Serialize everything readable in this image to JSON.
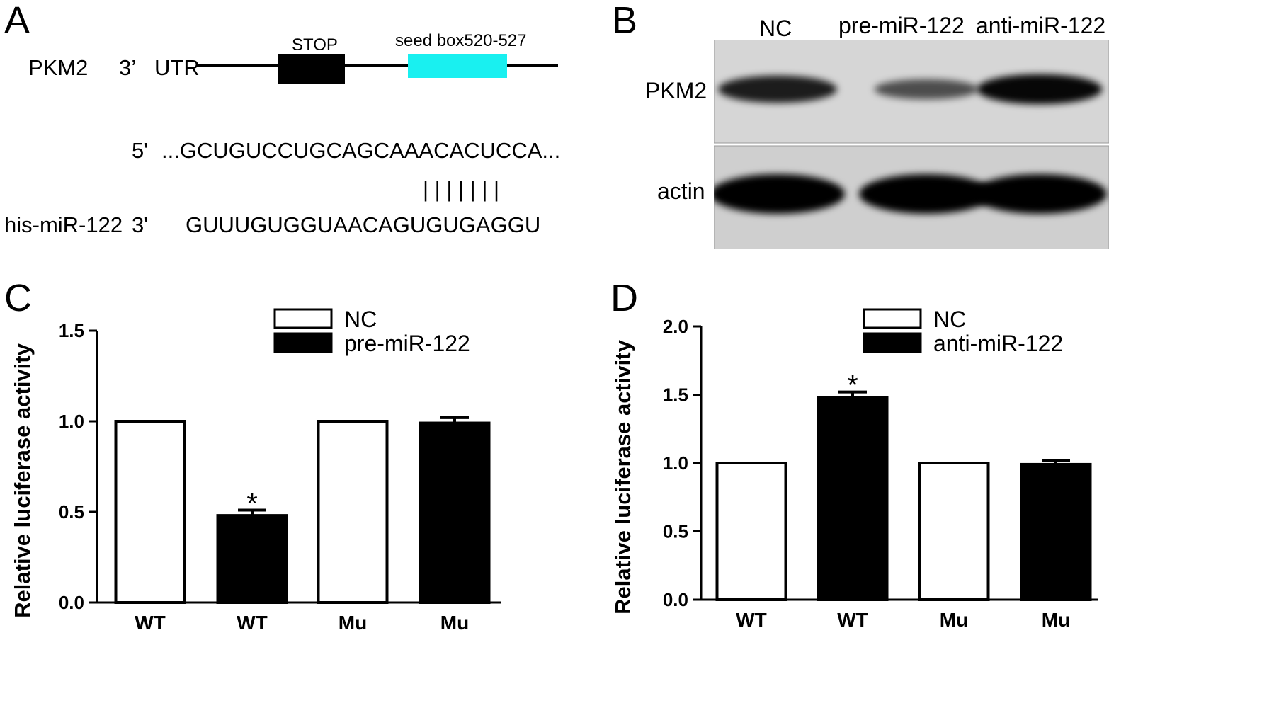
{
  "panels": {
    "a": {
      "letter": "A",
      "gene": "PKM2",
      "prime3": "3’",
      "utr": "UTR",
      "stop": "STOP",
      "seed_box": "seed box520-527",
      "utr_prime": "5'",
      "utr_seq": "...GCUGUCCUGCAGCAAACACUCCA...",
      "pairing": "| | | | | | |",
      "mirna_name": "his-miR-122",
      "mirna_prime": "3'",
      "mirna_seq": "GUUUGUGGUAACAGUGUGAGGU",
      "colors": {
        "stop_box": "#000000",
        "seed_box": "#19f0f0"
      }
    },
    "b": {
      "letter": "B",
      "lanes": [
        "NC",
        "pre-miR-122",
        "anti-miR-122"
      ],
      "rows": [
        {
          "label": "PKM2",
          "band_intensity": [
            0.8,
            0.45,
            0.95
          ]
        },
        {
          "label": "actin",
          "band_intensity": [
            1.0,
            1.0,
            1.0
          ]
        }
      ]
    },
    "c": {
      "letter": "C"
    },
    "d": {
      "letter": "D"
    }
  },
  "chart_data": [
    {
      "type": "bar",
      "panel": "C",
      "ylabel": "Relative luciferase activity",
      "categories": [
        "WT",
        "WT",
        "Mu",
        "Mu"
      ],
      "values": [
        1.0,
        0.48,
        1.0,
        0.99
      ],
      "errors": [
        0,
        0.03,
        0,
        0.03
      ],
      "bar_fill": [
        "#ffffff",
        "#000000",
        "#ffffff",
        "#000000"
      ],
      "significant": [
        false,
        true,
        false,
        false
      ],
      "significance_marker": "*",
      "ylim": [
        0,
        1.5
      ],
      "yticks": [
        "0.0",
        "0.5",
        "1.0",
        "1.5"
      ],
      "legend": [
        {
          "name": "NC",
          "fill": "#ffffff"
        },
        {
          "name": "pre-miR-122",
          "fill": "#000000"
        }
      ],
      "legend_position": "top-right",
      "grid": false
    },
    {
      "type": "bar",
      "panel": "D",
      "ylabel": "Relative luciferase activity",
      "categories": [
        "WT",
        "WT",
        "Mu",
        "Mu"
      ],
      "values": [
        1.0,
        1.48,
        1.0,
        0.99
      ],
      "errors": [
        0,
        0.04,
        0,
        0.03
      ],
      "bar_fill": [
        "#ffffff",
        "#000000",
        "#ffffff",
        "#000000"
      ],
      "significant": [
        false,
        true,
        false,
        false
      ],
      "significance_marker": "*",
      "ylim": [
        0,
        2.0
      ],
      "yticks": [
        "0.0",
        "0.5",
        "1.0",
        "1.5",
        "2.0"
      ],
      "legend": [
        {
          "name": "NC",
          "fill": "#ffffff"
        },
        {
          "name": "anti-miR-122",
          "fill": "#000000"
        }
      ],
      "legend_position": "top-right",
      "grid": false
    }
  ]
}
